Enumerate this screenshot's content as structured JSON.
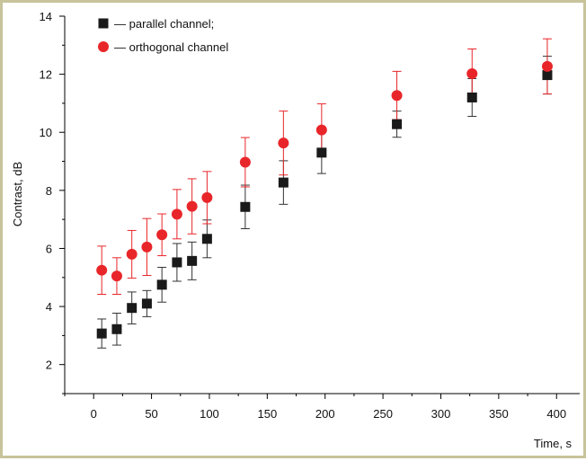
{
  "chart_data": {
    "type": "scatter",
    "title": "",
    "xlabel": "Time, s",
    "ylabel": "Contrast, dB",
    "xlim": [
      -25,
      420
    ],
    "ylim": [
      1,
      14
    ],
    "xticks": [
      0,
      50,
      100,
      150,
      200,
      250,
      300,
      350,
      400
    ],
    "yticks": [
      2,
      4,
      6,
      8,
      10,
      12,
      14
    ],
    "grid": false,
    "legend_position": "top-left",
    "series": [
      {
        "name": "parallel channel;",
        "legend_text": "— parallel channel;",
        "marker": "square",
        "color": "#1a1a1a",
        "errorbar_color": "#333333",
        "x": [
          7,
          20,
          33,
          46,
          59,
          72,
          85,
          98,
          131,
          164,
          197,
          262,
          327,
          392
        ],
        "y": [
          3.07,
          3.22,
          3.95,
          4.1,
          4.75,
          5.52,
          5.57,
          6.33,
          7.43,
          8.27,
          9.3,
          10.28,
          11.2,
          11.97
        ],
        "err": [
          0.5,
          0.55,
          0.55,
          0.45,
          0.6,
          0.65,
          0.65,
          0.65,
          0.75,
          0.75,
          0.72,
          0.45,
          0.65,
          0.65
        ]
      },
      {
        "name": "orthogonal channel",
        "legend_text": "— orthogonal channel",
        "marker": "circle",
        "color": "#e8262a",
        "errorbar_color": "#e8262a",
        "x": [
          7,
          20,
          33,
          46,
          59,
          72,
          85,
          98,
          131,
          164,
          197,
          262,
          327,
          392
        ],
        "y": [
          5.25,
          5.05,
          5.8,
          6.05,
          6.47,
          7.18,
          7.45,
          7.75,
          8.97,
          9.63,
          10.08,
          11.27,
          12.02,
          12.27
        ],
        "err": [
          0.83,
          0.63,
          0.82,
          0.98,
          0.72,
          0.85,
          0.95,
          0.9,
          0.85,
          1.1,
          0.9,
          0.83,
          0.85,
          0.95
        ]
      }
    ]
  }
}
